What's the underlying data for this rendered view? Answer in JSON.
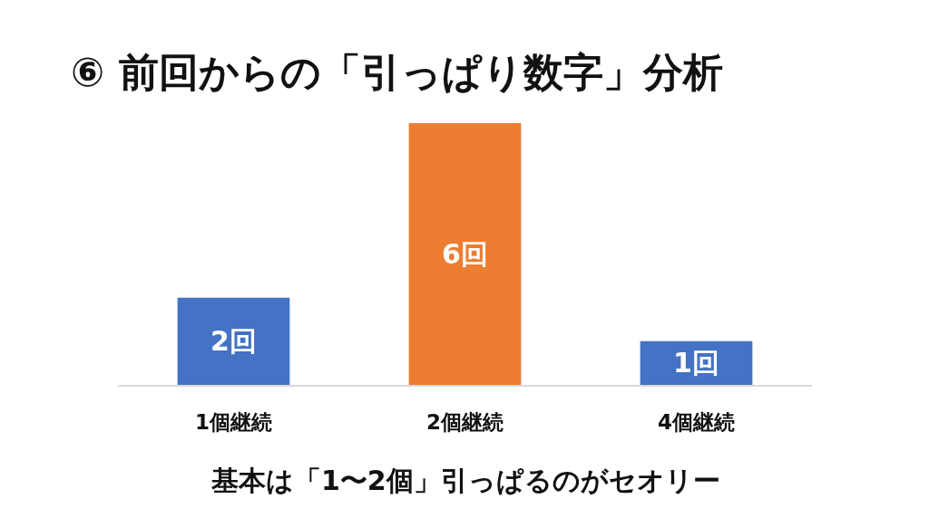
{
  "chart_data": {
    "type": "bar",
    "title": "⑥ 前回からの「引っぱり数字」分析",
    "categories": [
      "1個継続",
      "2個継続",
      "4個継続"
    ],
    "values": [
      2,
      6,
      1
    ],
    "colors": [
      "#4472c4",
      "#ed7d31",
      "#4472c4"
    ],
    "value_labels": [
      "2回",
      "6回",
      "1回"
    ],
    "annotations": [
      "基本は「1〜2個」引っぱるのがセオリー"
    ],
    "tick_labels": "x"
  }
}
